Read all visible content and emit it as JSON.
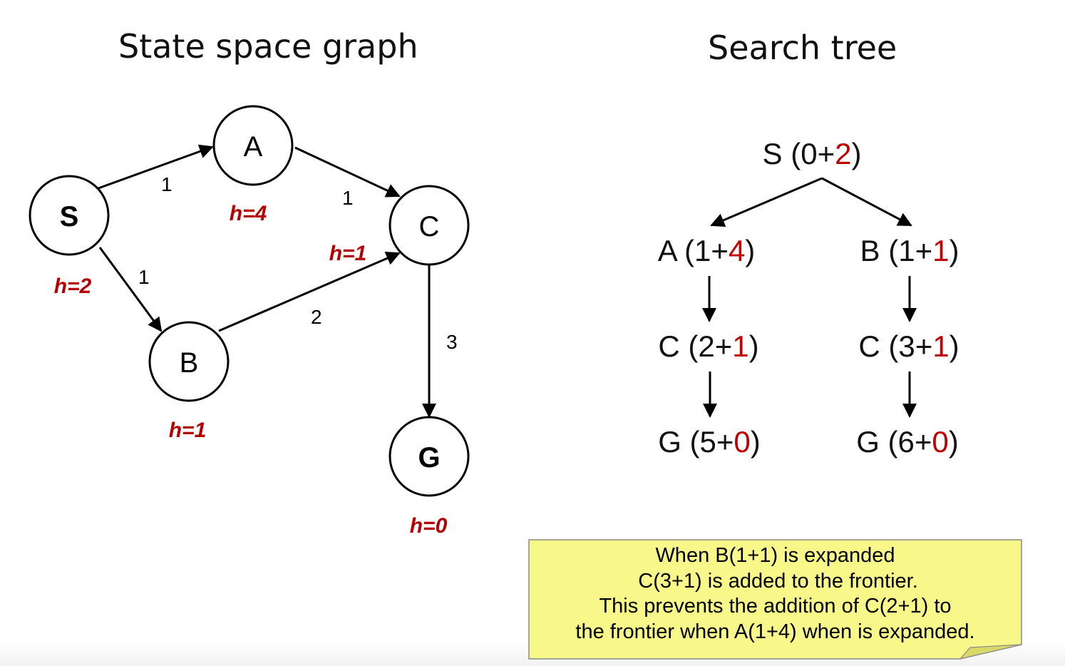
{
  "titles": {
    "left": "State space graph",
    "right": "Search tree"
  },
  "graph": {
    "nodes": {
      "S": {
        "label": "S",
        "h": "h=2"
      },
      "A": {
        "label": "A",
        "h": "h=4"
      },
      "B": {
        "label": "B",
        "h": "h=1"
      },
      "C": {
        "label": "C",
        "h": "h=1"
      },
      "G": {
        "label": "G",
        "h": "h=0"
      }
    },
    "edges": [
      {
        "from": "S",
        "to": "A",
        "cost": "1"
      },
      {
        "from": "A",
        "to": "C",
        "cost": "1"
      },
      {
        "from": "S",
        "to": "B",
        "cost": "1"
      },
      {
        "from": "B",
        "to": "C",
        "cost": "2"
      },
      {
        "from": "C",
        "to": "G",
        "cost": "3"
      }
    ]
  },
  "tree": {
    "root": {
      "state": "S",
      "g": "0",
      "h": "2"
    },
    "left_branch": [
      {
        "state": "A",
        "g": "1",
        "h": "4"
      },
      {
        "state": "C",
        "g": "2",
        "h": "1"
      },
      {
        "state": "G",
        "g": "5",
        "h": "0"
      }
    ],
    "right_branch": [
      {
        "state": "B",
        "g": "1",
        "h": "1"
      },
      {
        "state": "C",
        "g": "3",
        "h": "1"
      },
      {
        "state": "G",
        "g": "6",
        "h": "0"
      }
    ]
  },
  "note": {
    "lines": [
      "When B(1+1) is expanded",
      " C(3+1) is added to the frontier.",
      "This prevents the addition of C(2+1) to",
      "the frontier when A(1+4) when is expanded."
    ],
    "background": "#f8f88a"
  },
  "colors": {
    "heuristic": "#b40000",
    "tree_h": "#c00000"
  }
}
